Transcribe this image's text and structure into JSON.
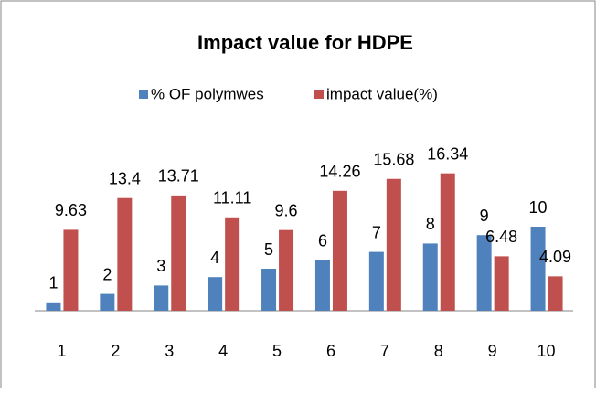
{
  "chart_data": {
    "type": "bar",
    "title": "Impact value for HDPE",
    "categories": [
      "1",
      "2",
      "3",
      "4",
      "5",
      "6",
      "7",
      "8",
      "9",
      "10"
    ],
    "series": [
      {
        "name": "% OF polymwes",
        "color": "#4f81bd",
        "values": [
          1,
          2,
          3,
          4,
          5,
          6,
          7,
          8,
          9,
          10
        ]
      },
      {
        "name": "impact value(%)",
        "color": "#c0504d",
        "values": [
          9.63,
          13.4,
          13.71,
          11.11,
          9.6,
          14.26,
          15.68,
          16.34,
          6.48,
          4.09
        ]
      }
    ],
    "ylim": [
      0,
      20
    ],
    "legend": "top",
    "grid": false
  }
}
